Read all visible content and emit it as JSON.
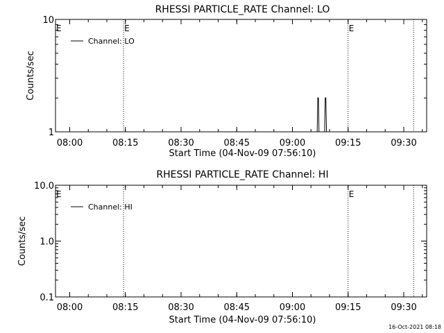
{
  "footer": {
    "timestamp": "16-Oct-2021 08:18"
  },
  "chart_data": [
    {
      "type": "line",
      "title": "RHESSI PARTICLE_RATE Channel: LO",
      "xlabel": "Start Time (04-Nov-09 07:56:10)",
      "ylabel": "Counts/sec",
      "yscale": "log",
      "xlim": [
        "07:56:10",
        "09:36:10"
      ],
      "ylim": [
        1,
        10
      ],
      "x_ticks": [
        "08:00",
        "08:15",
        "08:30",
        "08:45",
        "09:00",
        "09:15",
        "09:30"
      ],
      "y_ticks": [
        "1",
        "10"
      ],
      "legend": {
        "placement": "top-left",
        "entries": [
          "Channel: LO"
        ]
      },
      "event_lines": [
        {
          "time": "08:14:30",
          "label": "E"
        },
        {
          "time": "09:15:00",
          "label": "E"
        },
        {
          "time": "09:32:40",
          "label": ""
        }
      ],
      "left_marker": "E",
      "series": [
        {
          "name": "Channel: LO",
          "points": [
            [
              "09:06:40",
              1
            ],
            [
              "09:06:50",
              2
            ],
            [
              "09:07:00",
              2
            ],
            [
              "09:07:10",
              1
            ],
            [
              "09:08:40",
              1
            ],
            [
              "09:08:50",
              2
            ],
            [
              "09:09:00",
              2
            ],
            [
              "09:09:10",
              1
            ]
          ]
        }
      ]
    },
    {
      "type": "line",
      "title": "RHESSI PARTICLE_RATE Channel: HI",
      "xlabel": "Start Time (04-Nov-09 07:56:10)",
      "ylabel": "Counts/sec",
      "yscale": "log",
      "xlim": [
        "07:56:10",
        "09:36:10"
      ],
      "ylim": [
        0.1,
        10
      ],
      "x_ticks": [
        "08:00",
        "08:15",
        "08:30",
        "08:45",
        "09:00",
        "09:15",
        "09:30"
      ],
      "y_ticks": [
        "0.1",
        "1.0",
        "10.0"
      ],
      "legend": {
        "placement": "top-left",
        "entries": [
          "Channel: HI"
        ]
      },
      "event_lines": [
        {
          "time": "08:14:30",
          "label": ""
        },
        {
          "time": "09:15:00",
          "label": "E"
        },
        {
          "time": "09:32:40",
          "label": ""
        }
      ],
      "left_marker": "E",
      "series": [
        {
          "name": "Channel: HI",
          "points": []
        }
      ]
    }
  ]
}
